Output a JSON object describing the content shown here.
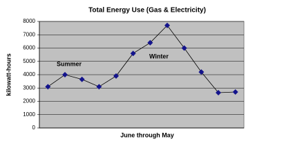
{
  "chart_data": {
    "type": "line",
    "title": "Total Energy Use (Gas & Electricity)",
    "x_label": "June through May",
    "y_label": "kilowatt-hours",
    "categories": [
      null,
      null,
      null,
      null,
      null,
      null,
      null,
      null,
      null,
      null,
      null,
      null
    ],
    "series": [
      {
        "name": "Total Energy Use",
        "color": "#14148c",
        "line_color": "#000000",
        "values": [
          3100,
          4000,
          3650,
          3100,
          3900,
          5600,
          6400,
          7700,
          6000,
          4200,
          2650,
          2700
        ]
      }
    ],
    "annotations": [
      "Summer",
      "Winter"
    ],
    "ylim": [
      0,
      8000
    ],
    "yticks": [
      0,
      1000,
      2000,
      3000,
      4000,
      5000,
      6000,
      7000,
      8000
    ],
    "grid": true,
    "plot_background": "#c0c0c0"
  }
}
